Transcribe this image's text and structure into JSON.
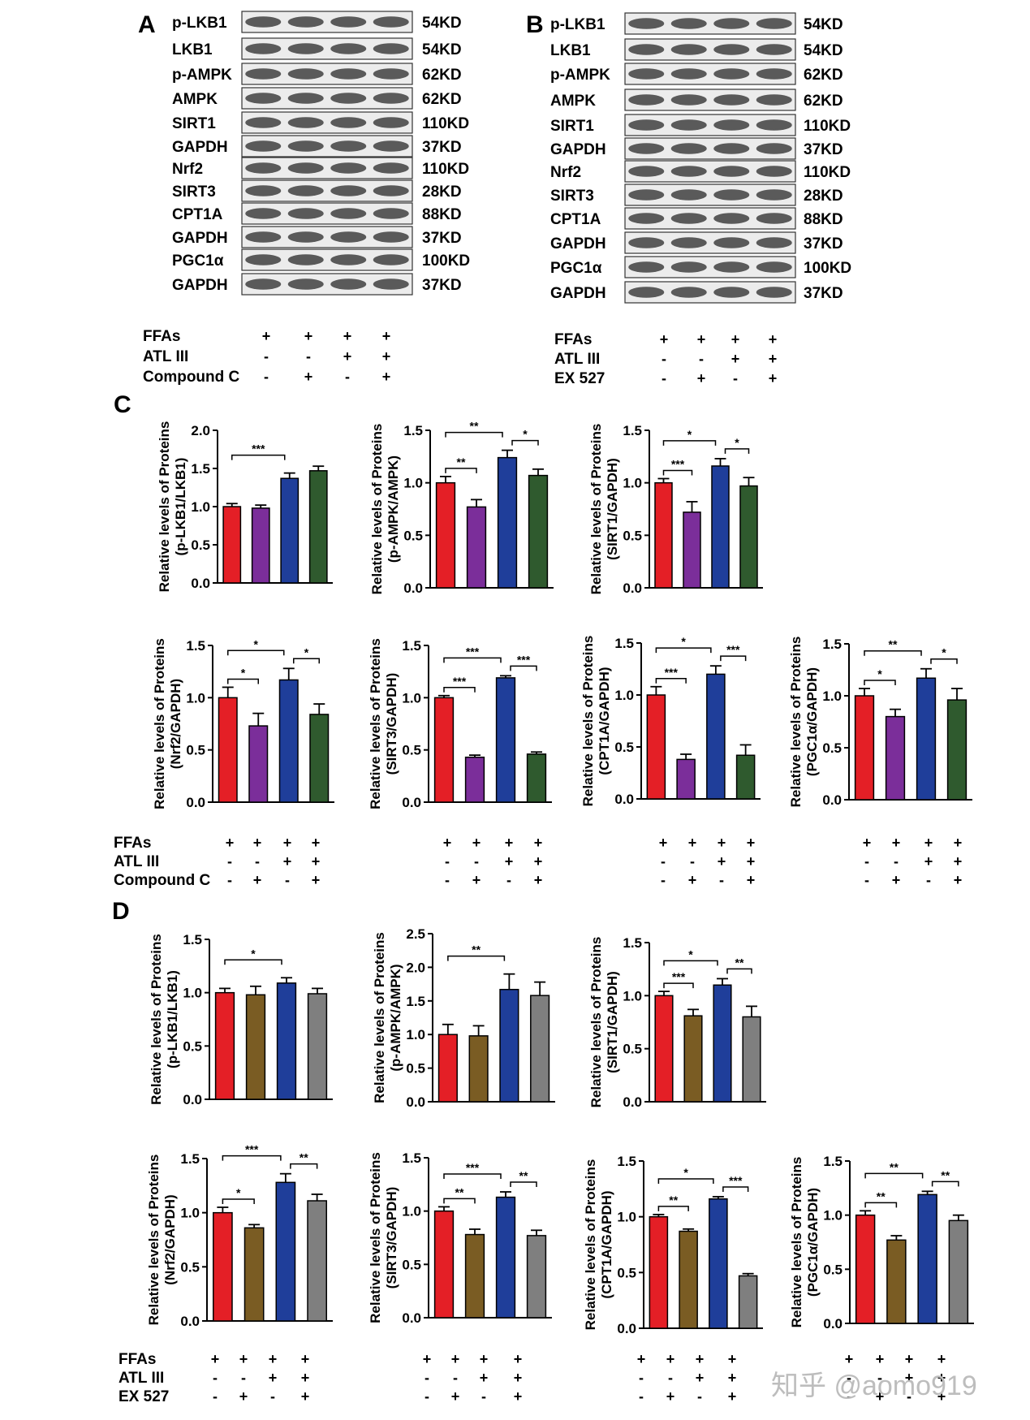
{
  "watermark": "知乎 @aomo919",
  "panels": {
    "A": {
      "letter": "A",
      "blots": [
        {
          "label": "p-LKB1",
          "kd": "54KD"
        },
        {
          "label": "LKB1",
          "kd": "54KD"
        },
        {
          "label": "p-AMPK",
          "kd": "62KD"
        },
        {
          "label": "AMPK",
          "kd": "62KD"
        },
        {
          "label": "SIRT1",
          "kd": "110KD"
        },
        {
          "label": "GAPDH",
          "kd": "37KD"
        },
        {
          "label": "Nrf2",
          "kd": "110KD"
        },
        {
          "label": "SIRT3",
          "kd": "28KD"
        },
        {
          "label": "CPT1A",
          "kd": "88KD"
        },
        {
          "label": "GAPDH",
          "kd": "37KD"
        },
        {
          "label": "PGC1α",
          "kd": "100KD"
        },
        {
          "label": "GAPDH",
          "kd": "37KD"
        }
      ],
      "conditions": [
        {
          "label": "FFAs",
          "signs": [
            "+",
            "+",
            "+",
            "+"
          ]
        },
        {
          "label": "ATL III",
          "signs": [
            "-",
            "-",
            "+",
            "+"
          ]
        },
        {
          "label": "Compound C",
          "signs": [
            "-",
            "+",
            "-",
            "+"
          ]
        }
      ]
    },
    "B": {
      "letter": "B",
      "blots": [
        {
          "label": "p-LKB1",
          "kd": "54KD"
        },
        {
          "label": "LKB1",
          "kd": "54KD"
        },
        {
          "label": "p-AMPK",
          "kd": "62KD"
        },
        {
          "label": "AMPK",
          "kd": "62KD"
        },
        {
          "label": "SIRT1",
          "kd": "110KD"
        },
        {
          "label": "GAPDH",
          "kd": "37KD"
        },
        {
          "label": "Nrf2",
          "kd": "110KD"
        },
        {
          "label": "SIRT3",
          "kd": "28KD"
        },
        {
          "label": "CPT1A",
          "kd": "88KD"
        },
        {
          "label": "GAPDH",
          "kd": "37KD"
        },
        {
          "label": "PGC1α",
          "kd": "100KD"
        },
        {
          "label": "GAPDH",
          "kd": "37KD"
        }
      ],
      "conditions": [
        {
          "label": "FFAs",
          "signs": [
            "+",
            "+",
            "+",
            "+"
          ]
        },
        {
          "label": "ATL III",
          "signs": [
            "-",
            "-",
            "+",
            "+"
          ]
        },
        {
          "label": "EX 527",
          "signs": [
            "-",
            "+",
            "-",
            "+"
          ]
        }
      ]
    },
    "C": {
      "letter": "C",
      "conditions": [
        {
          "label": "FFAs",
          "signs": [
            "+",
            "+",
            "+",
            "+"
          ]
        },
        {
          "label": "ATL III",
          "signs": [
            "-",
            "-",
            "+",
            "+"
          ]
        },
        {
          "label": "Compound C",
          "signs": [
            "-",
            "+",
            "-",
            "+"
          ]
        }
      ]
    },
    "D": {
      "letter": "D",
      "conditions": [
        {
          "label": "FFAs",
          "signs": [
            "+",
            "+",
            "+",
            "+"
          ]
        },
        {
          "label": "ATL III",
          "signs": [
            "-",
            "-",
            "+",
            "+"
          ]
        },
        {
          "label": "EX 527",
          "signs": [
            "-",
            "+",
            "-",
            "+"
          ]
        }
      ]
    }
  },
  "colors": {
    "C": [
      "#e41f26",
      "#7b2e9a",
      "#1f3e9a",
      "#2f5a2e"
    ],
    "D": [
      "#e41f26",
      "#7a5c23",
      "#1f3e9a",
      "#7f7f7f"
    ]
  },
  "chart_data": [
    {
      "panel": "C",
      "type": "bar",
      "ylabel": [
        "Relative levels of Proteins",
        "(p-LKB1/LKB1)"
      ],
      "ylim": [
        0,
        2.0
      ],
      "ticks": [
        "0.0",
        "0.5",
        "1.0",
        "1.5",
        "2.0"
      ],
      "values": [
        1.0,
        0.98,
        1.37,
        1.47
      ],
      "errors": [
        0.04,
        0.04,
        0.07,
        0.06
      ],
      "sig": [
        {
          "from": 0,
          "to": 2,
          "label": "***"
        }
      ]
    },
    {
      "panel": "C",
      "type": "bar",
      "ylabel": [
        "Relative levels of Proteins",
        "(p-AMPK/AMPK)"
      ],
      "ylim": [
        0,
        1.5
      ],
      "ticks": [
        "0.0",
        "0.5",
        "1.0",
        "1.5"
      ],
      "values": [
        1.0,
        0.77,
        1.24,
        1.07
      ],
      "errors": [
        0.06,
        0.07,
        0.07,
        0.06
      ],
      "sig": [
        {
          "from": 0,
          "to": 1,
          "label": "**"
        },
        {
          "from": 0,
          "to": 2,
          "label": "**"
        },
        {
          "from": 2,
          "to": 3,
          "label": "*"
        }
      ]
    },
    {
      "panel": "C",
      "type": "bar",
      "ylabel": [
        "Relative levels of Proteins",
        "(SIRT1/GAPDH)"
      ],
      "ylim": [
        0,
        1.5
      ],
      "ticks": [
        "0.0",
        "0.5",
        "1.0",
        "1.5"
      ],
      "values": [
        1.0,
        0.72,
        1.16,
        0.97
      ],
      "errors": [
        0.04,
        0.1,
        0.07,
        0.08
      ],
      "sig": [
        {
          "from": 0,
          "to": 1,
          "label": "***"
        },
        {
          "from": 0,
          "to": 2,
          "label": "*"
        },
        {
          "from": 2,
          "to": 3,
          "label": "*"
        }
      ]
    },
    {
      "panel": "C",
      "type": "bar",
      "ylabel": [
        "Relative levels of Proteins",
        "(Nrf2/GAPDH)"
      ],
      "ylim": [
        0,
        1.5
      ],
      "ticks": [
        "0.0",
        "0.5",
        "1.0",
        "1.5"
      ],
      "values": [
        1.0,
        0.73,
        1.17,
        0.84
      ],
      "errors": [
        0.1,
        0.12,
        0.11,
        0.1
      ],
      "sig": [
        {
          "from": 0,
          "to": 1,
          "label": "*"
        },
        {
          "from": 0,
          "to": 2,
          "label": "*"
        },
        {
          "from": 2,
          "to": 3,
          "label": "*"
        }
      ]
    },
    {
      "panel": "C",
      "type": "bar",
      "ylabel": [
        "Relative levels of Proteins",
        "(SIRT3/GAPDH)"
      ],
      "ylim": [
        0,
        1.5
      ],
      "ticks": [
        "0.0",
        "0.5",
        "1.0",
        "1.5"
      ],
      "values": [
        1.0,
        0.43,
        1.19,
        0.46
      ],
      "errors": [
        0.02,
        0.02,
        0.02,
        0.02
      ],
      "sig": [
        {
          "from": 0,
          "to": 1,
          "label": "***"
        },
        {
          "from": 0,
          "to": 2,
          "label": "***"
        },
        {
          "from": 2,
          "to": 3,
          "label": "***"
        }
      ]
    },
    {
      "panel": "C",
      "type": "bar",
      "ylabel": [
        "Relative levels of Proteins",
        "(CPT1A/GAPDH)"
      ],
      "ylim": [
        0,
        1.5
      ],
      "ticks": [
        "0.0",
        "0.5",
        "1.0",
        "1.5"
      ],
      "values": [
        1.0,
        0.38,
        1.2,
        0.42
      ],
      "errors": [
        0.08,
        0.05,
        0.08,
        0.1
      ],
      "sig": [
        {
          "from": 0,
          "to": 1,
          "label": "***"
        },
        {
          "from": 0,
          "to": 2,
          "label": "*"
        },
        {
          "from": 2,
          "to": 3,
          "label": "***"
        }
      ]
    },
    {
      "panel": "C",
      "type": "bar",
      "ylabel": [
        "Relative levels of Proteins",
        "(PGC1α/GAPDH)"
      ],
      "ylim": [
        0,
        1.5
      ],
      "ticks": [
        "0.0",
        "0.5",
        "1.0",
        "1.5"
      ],
      "values": [
        1.0,
        0.8,
        1.17,
        0.96
      ],
      "errors": [
        0.07,
        0.07,
        0.09,
        0.11
      ],
      "sig": [
        {
          "from": 0,
          "to": 1,
          "label": "*"
        },
        {
          "from": 0,
          "to": 2,
          "label": "**"
        },
        {
          "from": 2,
          "to": 3,
          "label": "*"
        }
      ]
    },
    {
      "panel": "D",
      "type": "bar",
      "ylabel": [
        "Relative levels of Proteins",
        "(p-LKB1/LKB1)"
      ],
      "ylim": [
        0,
        1.5
      ],
      "ticks": [
        "0.0",
        "0.5",
        "1.0",
        "1.5"
      ],
      "values": [
        1.0,
        0.98,
        1.09,
        0.99
      ],
      "errors": [
        0.04,
        0.08,
        0.05,
        0.05
      ],
      "sig": [
        {
          "from": 0,
          "to": 2,
          "label": "*"
        }
      ]
    },
    {
      "panel": "D",
      "type": "bar",
      "ylabel": [
        "Relative levels of Proteins",
        "(p-AMPK/AMPK)"
      ],
      "ylim": [
        0,
        2.5
      ],
      "ticks": [
        "0.0",
        "0.5",
        "1.0",
        "1.5",
        "2.0",
        "2.5"
      ],
      "values": [
        1.0,
        0.98,
        1.67,
        1.58
      ],
      "errors": [
        0.15,
        0.15,
        0.23,
        0.2
      ],
      "sig": [
        {
          "from": 0,
          "to": 2,
          "label": "**"
        }
      ]
    },
    {
      "panel": "D",
      "type": "bar",
      "ylabel": [
        "Relative levels of Proteins",
        "(SIRT1/GAPDH)"
      ],
      "ylim": [
        0,
        1.5
      ],
      "ticks": [
        "0.0",
        "0.5",
        "1.0",
        "1.5"
      ],
      "values": [
        1.0,
        0.81,
        1.1,
        0.8
      ],
      "errors": [
        0.04,
        0.06,
        0.06,
        0.1
      ],
      "sig": [
        {
          "from": 0,
          "to": 1,
          "label": "***"
        },
        {
          "from": 0,
          "to": 2,
          "label": "*"
        },
        {
          "from": 2,
          "to": 3,
          "label": "**"
        }
      ]
    },
    {
      "panel": "D",
      "type": "bar",
      "ylabel": [
        "Relative levels of Proteins",
        "(Nrf2/GAPDH)"
      ],
      "ylim": [
        0,
        1.5
      ],
      "ticks": [
        "0.0",
        "0.5",
        "1.0",
        "1.5"
      ],
      "values": [
        1.0,
        0.86,
        1.28,
        1.11
      ],
      "errors": [
        0.05,
        0.03,
        0.08,
        0.06
      ],
      "sig": [
        {
          "from": 0,
          "to": 1,
          "label": "*"
        },
        {
          "from": 0,
          "to": 2,
          "label": "***"
        },
        {
          "from": 2,
          "to": 3,
          "label": "**"
        }
      ]
    },
    {
      "panel": "D",
      "type": "bar",
      "ylabel": [
        "Relative levels of Proteins",
        "(SIRT3/GAPDH)"
      ],
      "ylim": [
        0,
        1.5
      ],
      "ticks": [
        "0.0",
        "0.5",
        "1.0",
        "1.5"
      ],
      "values": [
        1.0,
        0.78,
        1.13,
        0.77
      ],
      "errors": [
        0.04,
        0.05,
        0.05,
        0.05
      ],
      "sig": [
        {
          "from": 0,
          "to": 1,
          "label": "**"
        },
        {
          "from": 0,
          "to": 2,
          "label": "***"
        },
        {
          "from": 2,
          "to": 3,
          "label": "**"
        }
      ]
    },
    {
      "panel": "D",
      "type": "bar",
      "ylabel": [
        "Relative levels of Proteins",
        "(CPT1A/GAPDH)"
      ],
      "ylim": [
        0,
        1.5
      ],
      "ticks": [
        "0.0",
        "0.5",
        "1.0",
        "1.5"
      ],
      "values": [
        1.0,
        0.87,
        1.16,
        0.47
      ],
      "errors": [
        0.02,
        0.02,
        0.02,
        0.02
      ],
      "sig": [
        {
          "from": 0,
          "to": 1,
          "label": "**"
        },
        {
          "from": 0,
          "to": 2,
          "label": "*"
        },
        {
          "from": 2,
          "to": 3,
          "label": "***"
        }
      ]
    },
    {
      "panel": "D",
      "type": "bar",
      "ylabel": [
        "Relative levels of Proteins",
        "(PGC1α/GAPDH)"
      ],
      "ylim": [
        0,
        1.5
      ],
      "ticks": [
        "0.0",
        "0.5",
        "1.0",
        "1.5"
      ],
      "values": [
        1.0,
        0.77,
        1.19,
        0.95
      ],
      "errors": [
        0.04,
        0.04,
        0.03,
        0.05
      ],
      "sig": [
        {
          "from": 0,
          "to": 1,
          "label": "**"
        },
        {
          "from": 0,
          "to": 2,
          "label": "**"
        },
        {
          "from": 2,
          "to": 3,
          "label": "**"
        }
      ]
    }
  ]
}
